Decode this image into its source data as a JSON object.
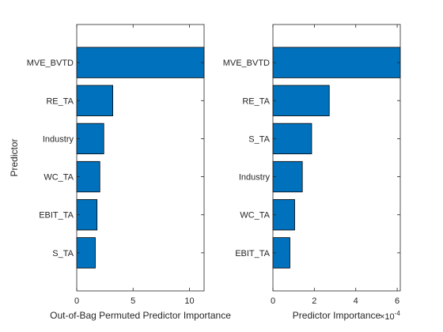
{
  "chart_data": [
    {
      "type": "bar",
      "orientation": "horizontal",
      "categories": [
        "MVE_BVTD",
        "RE_TA",
        "Industry",
        "WC_TA",
        "EBIT_TA",
        "S_TA"
      ],
      "values": [
        11.3,
        3.2,
        2.4,
        2.05,
        1.8,
        1.65
      ],
      "xlabel": "Out-of-Bag Permuted Predictor Importance",
      "ylabel": "Predictor",
      "xlim": [
        0,
        11.3
      ],
      "xticks": [
        0,
        5,
        10
      ],
      "xtick_labels": [
        "0",
        "5",
        "10"
      ],
      "exponent_label": "",
      "grid": false,
      "bar_color": "#0072bd"
    },
    {
      "type": "bar",
      "orientation": "horizontal",
      "categories": [
        "MVE_BVTD",
        "RE_TA",
        "S_TA",
        "Industry",
        "WC_TA",
        "EBIT_TA"
      ],
      "values": [
        6.15,
        2.72,
        1.87,
        1.42,
        1.05,
        0.82
      ],
      "xlabel": "Predictor Importance",
      "ylabel": "",
      "xlim": [
        0,
        6.15
      ],
      "xticks": [
        0,
        2,
        4,
        6
      ],
      "xtick_labels": [
        "0",
        "2",
        "4",
        "6"
      ],
      "exponent_label": "×10",
      "exponent_power": "-4",
      "grid": false,
      "bar_color": "#0072bd"
    }
  ]
}
